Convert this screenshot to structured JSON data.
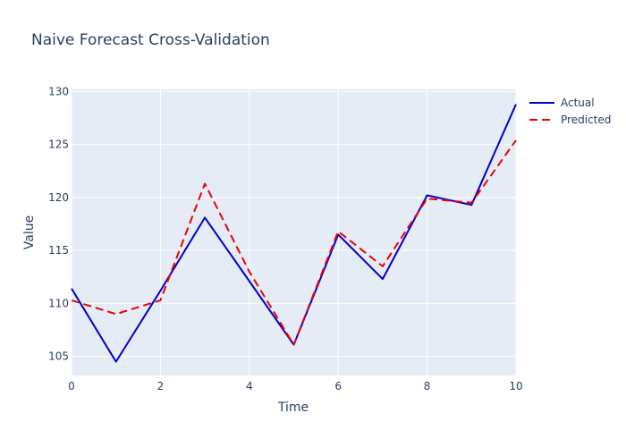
{
  "chart_data": {
    "type": "line",
    "title": "Naive Forecast Cross-Validation",
    "xlabel": "Time",
    "ylabel": "Value",
    "xlim": [
      0,
      10
    ],
    "ylim": [
      103.2,
      130.2
    ],
    "x_ticks": [
      0,
      2,
      4,
      6,
      8,
      10
    ],
    "y_ticks": [
      105,
      110,
      115,
      120,
      125,
      130
    ],
    "grid": true,
    "legend_position": "top-right",
    "plot_background": "#e5ecf6",
    "x": [
      0,
      1,
      2,
      3,
      4,
      5,
      6,
      7,
      8,
      9,
      10
    ],
    "series": [
      {
        "name": "Actual",
        "color": "#0000cc",
        "dash": "solid",
        "values": [
          111.4,
          104.5,
          111.2,
          118.1,
          112.1,
          106.1,
          116.5,
          112.3,
          120.2,
          119.3,
          128.8
        ]
      },
      {
        "name": "Predicted",
        "color": "#ee0000",
        "dash": "dash",
        "values": [
          110.3,
          109.0,
          110.3,
          121.3,
          113.0,
          106.1,
          116.8,
          113.5,
          119.9,
          119.5,
          125.4
        ]
      }
    ]
  }
}
